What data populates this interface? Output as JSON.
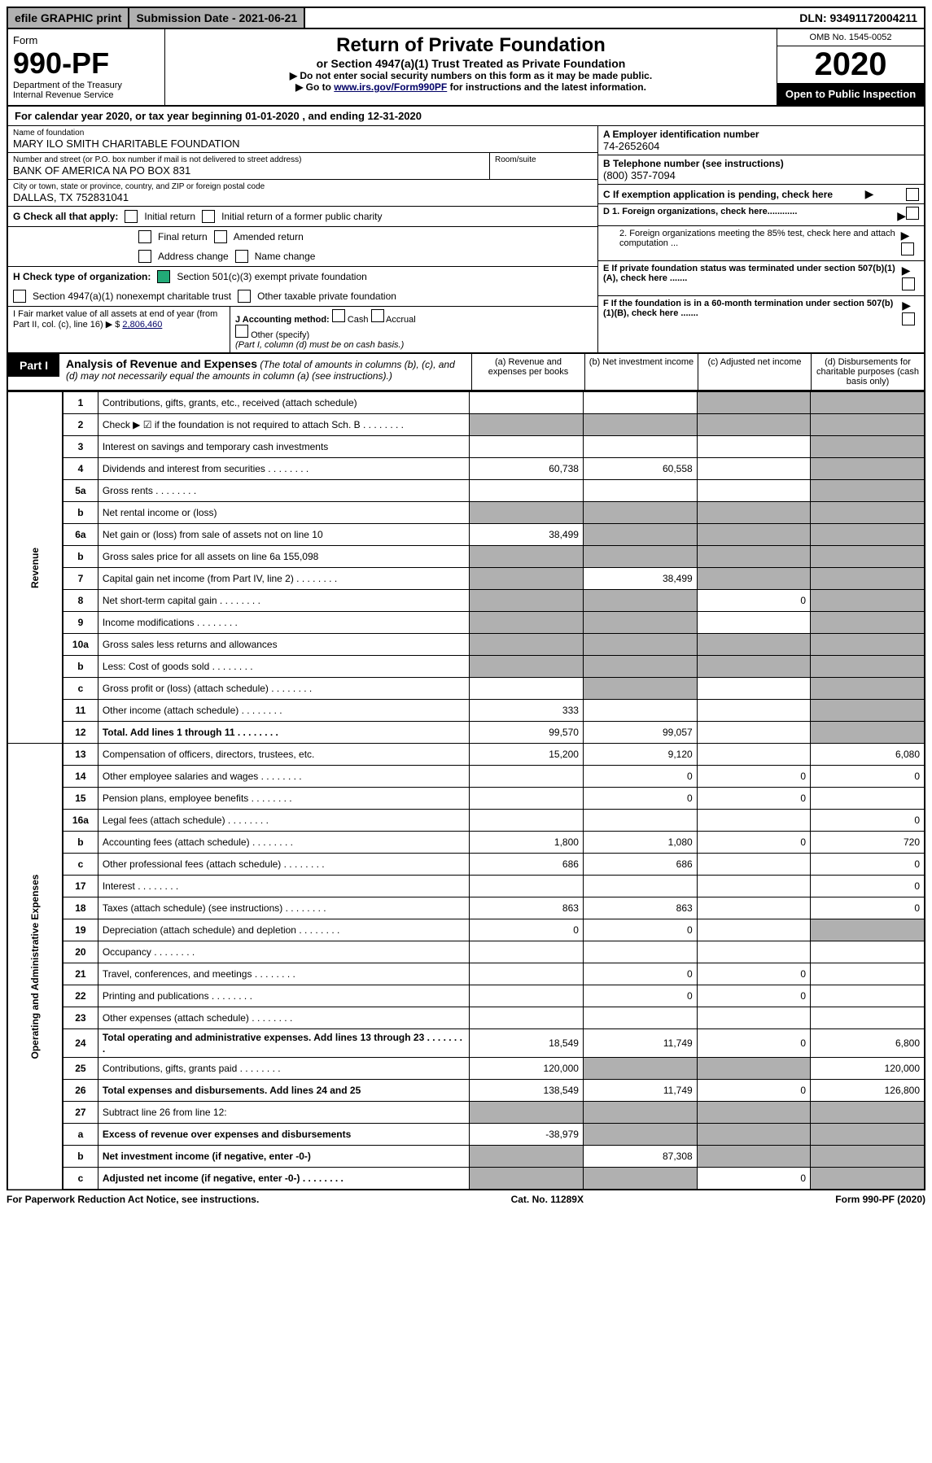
{
  "topbar": {
    "efile": "efile GRAPHIC print",
    "submission": "Submission Date - 2021-06-21",
    "dln": "DLN: 93491172004211"
  },
  "header": {
    "form_word": "Form",
    "form_no": "990-PF",
    "dept": "Department of the Treasury",
    "irs": "Internal Revenue Service",
    "title": "Return of Private Foundation",
    "subtitle": "or Section 4947(a)(1) Trust Treated as Private Foundation",
    "instr1": "▶ Do not enter social security numbers on this form as it may be made public.",
    "instr2_pre": "▶ Go to ",
    "instr2_link": "www.irs.gov/Form990PF",
    "instr2_post": " for instructions and the latest information.",
    "omb": "OMB No. 1545-0052",
    "year": "2020",
    "open": "Open to Public Inspection"
  },
  "calyear": "For calendar year 2020, or tax year beginning 01-01-2020           , and ending 12-31-2020",
  "info": {
    "name_label": "Name of foundation",
    "name": "MARY ILO SMITH CHARITABLE FOUNDATION",
    "addr_label": "Number and street (or P.O. box number if mail is not delivered to street address)",
    "addr": "BANK OF AMERICA NA PO BOX 831",
    "room_label": "Room/suite",
    "city_label": "City or town, state or province, country, and ZIP or foreign postal code",
    "city": "DALLAS, TX  752831041",
    "ein_label": "A Employer identification number",
    "ein": "74-2652604",
    "phone_label": "B Telephone number (see instructions)",
    "phone": "(800) 357-7094",
    "c_label": "C If exemption application is pending, check here",
    "d1": "D 1. Foreign organizations, check here............",
    "d2": "2. Foreign organizations meeting the 85% test, check here and attach computation ...",
    "e_label": "E  If private foundation status was terminated under section 507(b)(1)(A), check here .......",
    "f_label": "F  If the foundation is in a 60-month termination under section 507(b)(1)(B), check here .......",
    "g_label": "G Check all that apply:",
    "g_opts": [
      "Initial return",
      "Initial return of a former public charity",
      "Final return",
      "Amended return",
      "Address change",
      "Name change"
    ],
    "h_label": "H Check type of organization:",
    "h_opt1": "Section 501(c)(3) exempt private foundation",
    "h_opt2": "Section 4947(a)(1) nonexempt charitable trust",
    "h_opt3": "Other taxable private foundation",
    "i_label": "I Fair market value of all assets at end of year (from Part II, col. (c), line 16) ▶ $",
    "i_val": "2,806,460",
    "j_label": "J Accounting method:",
    "j_cash": "Cash",
    "j_accrual": "Accrual",
    "j_other": "Other (specify)",
    "j_note": "(Part I, column (d) must be on cash basis.)"
  },
  "part1": {
    "label": "Part I",
    "title": "Analysis of Revenue and Expenses",
    "title_note": "(The total of amounts in columns (b), (c), and (d) may not necessarily equal the amounts in column (a) (see instructions).)",
    "col_a": "(a)  Revenue and expenses per books",
    "col_b": "(b)  Net investment income",
    "col_c": "(c)  Adjusted net income",
    "col_d": "(d)  Disbursements for charitable purposes (cash basis only)"
  },
  "sections": {
    "revenue": "Revenue",
    "expenses": "Operating and Administrative Expenses"
  },
  "lines": [
    {
      "n": "1",
      "d": "Contributions, gifts, grants, etc., received (attach schedule)",
      "a": "",
      "b": "",
      "c": "s",
      "ds": "s"
    },
    {
      "n": "2",
      "d": "Check ▶ ☑ if the foundation is not required to attach Sch. B",
      "suffix": "dots",
      "a": "s",
      "b": "s",
      "c": "s",
      "ds": "s"
    },
    {
      "n": "3",
      "d": "Interest on savings and temporary cash investments",
      "a": "",
      "b": "",
      "c": "",
      "ds": "s"
    },
    {
      "n": "4",
      "d": "Dividends and interest from securities",
      "suffix": "dots",
      "a": "60,738",
      "b": "60,558",
      "c": "",
      "ds": "s"
    },
    {
      "n": "5a",
      "d": "Gross rents",
      "suffix": "dots",
      "a": "",
      "b": "",
      "c": "",
      "ds": "s"
    },
    {
      "n": "b",
      "d": "Net rental income or (loss)",
      "a": "s",
      "b": "s",
      "c": "s",
      "ds": "s"
    },
    {
      "n": "6a",
      "d": "Net gain or (loss) from sale of assets not on line 10",
      "a": "38,499",
      "b": "s",
      "c": "s",
      "ds": "s"
    },
    {
      "n": "b",
      "d": "Gross sales price for all assets on line 6a           155,098",
      "a": "s",
      "b": "s",
      "c": "s",
      "ds": "s"
    },
    {
      "n": "7",
      "d": "Capital gain net income (from Part IV, line 2)",
      "suffix": "dots",
      "a": "s",
      "b": "38,499",
      "c": "s",
      "ds": "s"
    },
    {
      "n": "8",
      "d": "Net short-term capital gain",
      "suffix": "dots",
      "a": "s",
      "b": "s",
      "c": "0",
      "ds": "s"
    },
    {
      "n": "9",
      "d": "Income modifications",
      "suffix": "dots",
      "a": "s",
      "b": "s",
      "c": "",
      "ds": "s"
    },
    {
      "n": "10a",
      "d": "Gross sales less returns and allowances",
      "a": "s",
      "b": "s",
      "c": "s",
      "ds": "s"
    },
    {
      "n": "b",
      "d": "Less: Cost of goods sold",
      "suffix": "dots",
      "a": "s",
      "b": "s",
      "c": "s",
      "ds": "s"
    },
    {
      "n": "c",
      "d": "Gross profit or (loss) (attach schedule)",
      "suffix": "dots",
      "a": "",
      "b": "s",
      "c": "",
      "ds": "s"
    },
    {
      "n": "11",
      "d": "Other income (attach schedule)",
      "suffix": "dots",
      "a": "333",
      "b": "",
      "c": "",
      "ds": "s"
    },
    {
      "n": "12",
      "d": "Total. Add lines 1 through 11",
      "suffix": "dots",
      "bold": true,
      "a": "99,570",
      "b": "99,057",
      "c": "",
      "ds": "s"
    },
    {
      "n": "13",
      "d": "Compensation of officers, directors, trustees, etc.",
      "a": "15,200",
      "b": "9,120",
      "c": "",
      "ds": "6,080"
    },
    {
      "n": "14",
      "d": "Other employee salaries and wages",
      "suffix": "dots",
      "a": "",
      "b": "0",
      "c": "0",
      "ds": "0"
    },
    {
      "n": "15",
      "d": "Pension plans, employee benefits",
      "suffix": "dots",
      "a": "",
      "b": "0",
      "c": "0",
      "ds": ""
    },
    {
      "n": "16a",
      "d": "Legal fees (attach schedule)",
      "suffix": "dots",
      "a": "",
      "b": "",
      "c": "",
      "ds": "0"
    },
    {
      "n": "b",
      "d": "Accounting fees (attach schedule)",
      "suffix": "dots",
      "a": "1,800",
      "b": "1,080",
      "c": "0",
      "ds": "720"
    },
    {
      "n": "c",
      "d": "Other professional fees (attach schedule)",
      "suffix": "dots",
      "a": "686",
      "b": "686",
      "c": "",
      "ds": "0"
    },
    {
      "n": "17",
      "d": "Interest",
      "suffix": "dots",
      "a": "",
      "b": "",
      "c": "",
      "ds": "0"
    },
    {
      "n": "18",
      "d": "Taxes (attach schedule) (see instructions)",
      "suffix": "dots",
      "a": "863",
      "b": "863",
      "c": "",
      "ds": "0"
    },
    {
      "n": "19",
      "d": "Depreciation (attach schedule) and depletion",
      "suffix": "dots",
      "a": "0",
      "b": "0",
      "c": "",
      "ds": "s"
    },
    {
      "n": "20",
      "d": "Occupancy",
      "suffix": "dots",
      "a": "",
      "b": "",
      "c": "",
      "ds": ""
    },
    {
      "n": "21",
      "d": "Travel, conferences, and meetings",
      "suffix": "dots",
      "a": "",
      "b": "0",
      "c": "0",
      "ds": ""
    },
    {
      "n": "22",
      "d": "Printing and publications",
      "suffix": "dots",
      "a": "",
      "b": "0",
      "c": "0",
      "ds": ""
    },
    {
      "n": "23",
      "d": "Other expenses (attach schedule)",
      "suffix": "dots",
      "a": "",
      "b": "",
      "c": "",
      "ds": ""
    },
    {
      "n": "24",
      "d": "Total operating and administrative expenses. Add lines 13 through 23",
      "suffix": "dots",
      "bold": true,
      "a": "18,549",
      "b": "11,749",
      "c": "0",
      "ds": "6,800"
    },
    {
      "n": "25",
      "d": "Contributions, gifts, grants paid",
      "suffix": "dots",
      "a": "120,000",
      "b": "s",
      "c": "s",
      "ds": "120,000"
    },
    {
      "n": "26",
      "d": "Total expenses and disbursements. Add lines 24 and 25",
      "bold": true,
      "a": "138,549",
      "b": "11,749",
      "c": "0",
      "ds": "126,800"
    },
    {
      "n": "27",
      "d": "Subtract line 26 from line 12:",
      "a": "s",
      "b": "s",
      "c": "s",
      "ds": "s"
    },
    {
      "n": "a",
      "d": "Excess of revenue over expenses and disbursements",
      "bold": true,
      "a": "-38,979",
      "b": "s",
      "c": "s",
      "ds": "s"
    },
    {
      "n": "b",
      "d": "Net investment income (if negative, enter -0-)",
      "bold": true,
      "a": "s",
      "b": "87,308",
      "c": "s",
      "ds": "s"
    },
    {
      "n": "c",
      "d": "Adjusted net income (if negative, enter -0-)",
      "suffix": "dots",
      "bold": true,
      "a": "s",
      "b": "s",
      "c": "0",
      "ds": "s"
    }
  ],
  "footer": {
    "left": "For Paperwork Reduction Act Notice, see instructions.",
    "mid": "Cat. No. 11289X",
    "right": "Form 990-PF (2020)"
  }
}
